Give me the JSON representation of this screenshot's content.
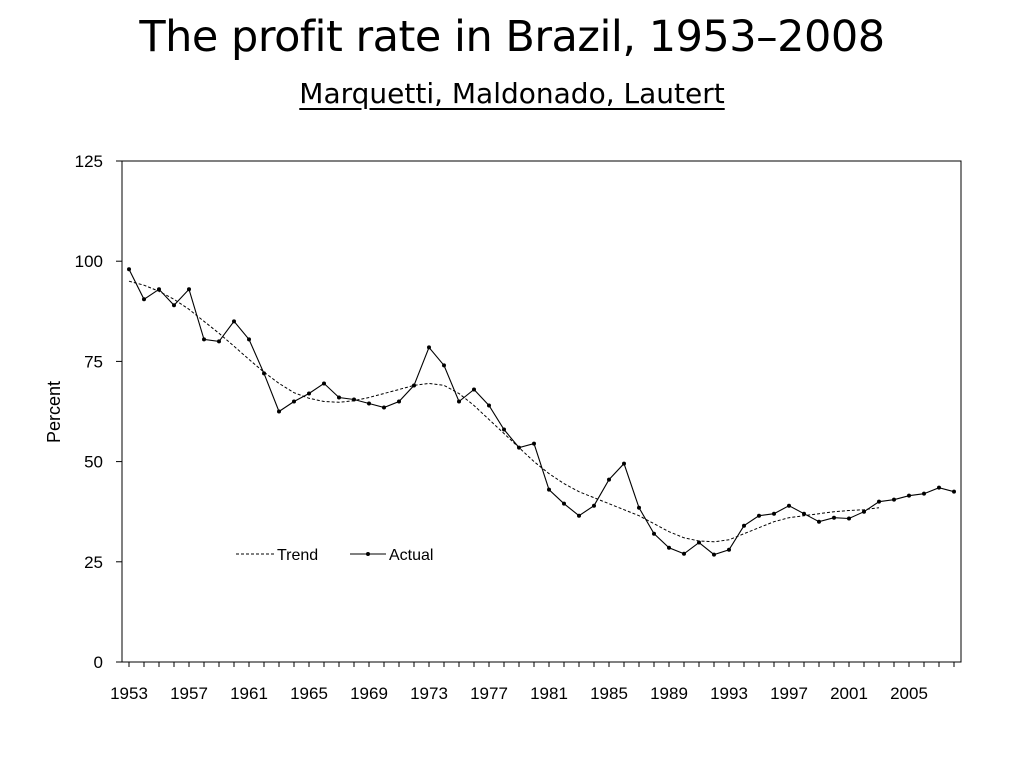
{
  "slide": {
    "title": "The profit rate in Brazil, 1953–2008",
    "subtitle": "Marquetti, Maldonado, Lautert"
  },
  "chart_data": {
    "type": "line",
    "title": "The profit rate in Brazil, 1953–2008",
    "xlabel": "",
    "ylabel": "Percent",
    "ylim": [
      0,
      125
    ],
    "xlim": [
      1953,
      2008
    ],
    "yticks": [
      0,
      25,
      50,
      75,
      100,
      125
    ],
    "xtick_labels": [
      "1953",
      "1957",
      "1961",
      "1965",
      "1969",
      "1973",
      "1977",
      "1981",
      "1985",
      "1989",
      "1993",
      "1997",
      "2001",
      "2005"
    ],
    "grid": false,
    "legend": {
      "position": "lower-left inside",
      "entries": [
        "Trend",
        "Actual"
      ]
    },
    "x": [
      1953,
      1954,
      1955,
      1956,
      1957,
      1958,
      1959,
      1960,
      1961,
      1962,
      1963,
      1964,
      1965,
      1966,
      1967,
      1968,
      1969,
      1970,
      1971,
      1972,
      1973,
      1974,
      1975,
      1976,
      1977,
      1978,
      1979,
      1980,
      1981,
      1982,
      1983,
      1984,
      1985,
      1986,
      1987,
      1988,
      1989,
      1990,
      1991,
      1992,
      1993,
      1994,
      1995,
      1996,
      1997,
      1998,
      1999,
      2000,
      2001,
      2002,
      2003,
      2004,
      2005,
      2006,
      2007,
      2008
    ],
    "series": [
      {
        "name": "Actual",
        "style": "solid-with-markers",
        "color": "#000000",
        "values": [
          98,
          90.5,
          93,
          89,
          93,
          80.5,
          80,
          85,
          80.5,
          72,
          62.5,
          65,
          67,
          69.5,
          66,
          65.5,
          64.5,
          63.5,
          65,
          69,
          78.5,
          74,
          65,
          68,
          64,
          58,
          53.5,
          54.5,
          43,
          39.5,
          36.5,
          39,
          45.5,
          49.5,
          38.5,
          32,
          28.5,
          27,
          29.8,
          26.8,
          28,
          34,
          36.5,
          37,
          39,
          37,
          35,
          36,
          35.8,
          37.5,
          40,
          40.5,
          41.5,
          42,
          43.5,
          42.5
        ]
      },
      {
        "name": "Trend",
        "style": "dashed",
        "color": "#000000",
        "values": [
          95,
          94,
          92.5,
          90.5,
          88,
          85,
          82,
          78.8,
          75.5,
          72.3,
          69.5,
          67.2,
          65.8,
          65,
          64.8,
          65.2,
          66,
          67,
          68,
          69,
          69.5,
          69,
          67,
          64,
          60.5,
          57,
          53.5,
          50,
          47,
          44.5,
          42.5,
          41,
          39.5,
          38,
          36.5,
          34.5,
          32.5,
          31,
          30.2,
          30,
          30.5,
          32,
          33.5,
          35,
          36,
          36.5,
          37,
          37.5,
          37.8,
          38,
          38.5,
          null,
          null,
          null,
          null,
          null
        ]
      }
    ]
  }
}
